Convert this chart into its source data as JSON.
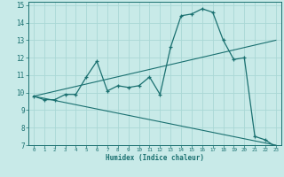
{
  "xlabel": "Humidex (Indice chaleur)",
  "bg_color": "#c8eae8",
  "line_color": "#1a7070",
  "grid_color": "#aad8d5",
  "xlim": [
    -0.5,
    23.5
  ],
  "ylim": [
    7,
    15.2
  ],
  "xticks": [
    0,
    1,
    2,
    3,
    4,
    5,
    6,
    7,
    8,
    9,
    10,
    11,
    12,
    13,
    14,
    15,
    16,
    17,
    18,
    19,
    20,
    21,
    22,
    23
  ],
  "yticks": [
    7,
    8,
    9,
    10,
    11,
    12,
    13,
    14,
    15
  ],
  "curve1_x": [
    0,
    1,
    2,
    3,
    4,
    5,
    6,
    7,
    8,
    9,
    10,
    11,
    12,
    13,
    14,
    15,
    16,
    17,
    18,
    19,
    20,
    21,
    22,
    23
  ],
  "curve1_y": [
    9.8,
    9.6,
    9.6,
    9.9,
    9.9,
    10.9,
    11.8,
    10.1,
    10.4,
    10.3,
    10.4,
    10.9,
    9.9,
    12.6,
    14.4,
    14.5,
    14.8,
    14.6,
    13.0,
    11.9,
    12.0,
    7.5,
    7.3,
    6.9
  ],
  "curve2_x": [
    0,
    23
  ],
  "curve2_y": [
    9.8,
    13.0
  ],
  "curve3_x": [
    0,
    23
  ],
  "curve3_y": [
    9.8,
    7.0
  ]
}
